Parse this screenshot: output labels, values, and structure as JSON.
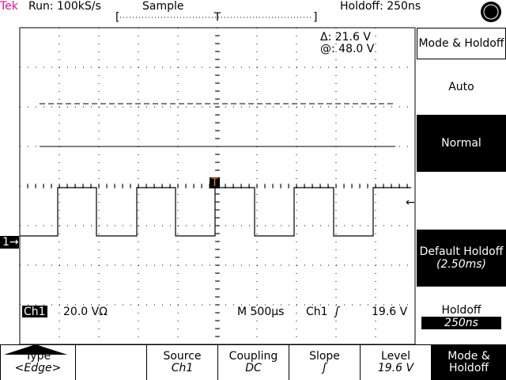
{
  "header": {
    "brand": "Tek",
    "status": "Run: 100kS/s",
    "mode": "Sample",
    "holdoff": "Holdoff: 250ns",
    "trigger_position": "T"
  },
  "cursors": {
    "delta": "Δ: 21.6 V",
    "at": "@: 48.0 V"
  },
  "markers": {
    "channel": "1",
    "trigger": "T"
  },
  "readout": {
    "channel": "Ch1",
    "scale": "20.0 VΩ",
    "timebase": "M 500µs",
    "trigger_source": "Ch1",
    "trigger_slope": "ʃ",
    "trigger_level": "19.6 V"
  },
  "side_menu": {
    "title": "Mode & Holdoff",
    "items": [
      {
        "label": "Auto",
        "selected": false
      },
      {
        "label": "Normal",
        "selected": true
      },
      {
        "label": "Default Holdoff",
        "detail": "(2.50ms)",
        "selected": true
      },
      {
        "label": "Holdoff",
        "detail": "250ns",
        "selected": false
      }
    ]
  },
  "bottom_menu": [
    {
      "label": "Type",
      "value": "<Edge>"
    },
    {
      "label": "Source",
      "value": "Ch1"
    },
    {
      "label": "Coupling",
      "value": "DC"
    },
    {
      "label": "Slope",
      "value": "ʃ"
    },
    {
      "label": "Level",
      "value": "19.6 V"
    },
    {
      "label": "Mode & Holdoff",
      "selected": true
    }
  ]
}
